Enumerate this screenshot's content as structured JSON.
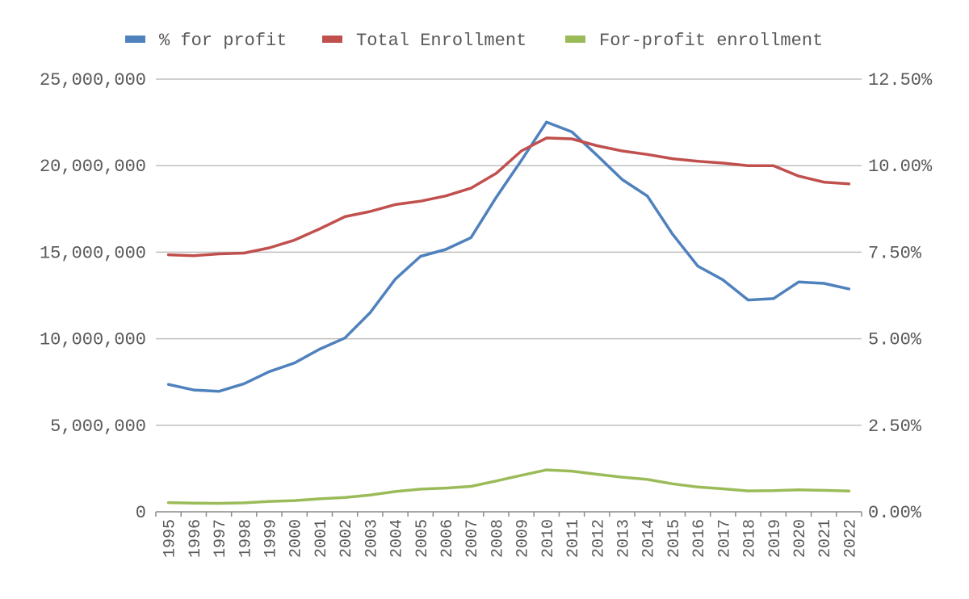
{
  "chart_data": {
    "type": "line",
    "title": "",
    "legend_position": "top",
    "categories": [
      "1995",
      "1996",
      "1997",
      "1998",
      "1999",
      "2000",
      "2001",
      "2002",
      "2003",
      "2004",
      "2005",
      "2006",
      "2007",
      "2008",
      "2009",
      "2010",
      "2011",
      "2012",
      "2013",
      "2014",
      "2015",
      "2016",
      "2017",
      "2018",
      "2019",
      "2020",
      "2021",
      "2022"
    ],
    "y_left": {
      "min": 0,
      "max": 25000000,
      "ticks": [
        0,
        5000000,
        10000000,
        15000000,
        20000000,
        25000000
      ],
      "tick_labels": [
        "0",
        "5,000,000",
        "10,000,000",
        "15,000,000",
        "20,000,000",
        "25,000,000"
      ]
    },
    "y_right": {
      "min": 0,
      "max": 12.5,
      "ticks": [
        0,
        2.5,
        5,
        7.5,
        10,
        12.5
      ],
      "tick_labels": [
        "0.00%",
        "2.50%",
        "5.00%",
        "7.50%",
        "10.00%",
        "12.50%"
      ]
    },
    "grid": true,
    "series": [
      {
        "name": "% for profit",
        "axis": "right",
        "color": "#4f81bd",
        "values": [
          3.68,
          3.52,
          3.48,
          3.7,
          4.05,
          4.3,
          4.7,
          5.02,
          5.75,
          6.72,
          7.38,
          7.58,
          7.92,
          9.08,
          10.15,
          11.26,
          10.98,
          10.3,
          9.6,
          9.12,
          8.02,
          7.1,
          6.7,
          6.12,
          6.16,
          6.64,
          6.6,
          6.44
        ]
      },
      {
        "name": "Total Enrollment",
        "axis": "left",
        "color": "#c0504d",
        "values": [
          14850000,
          14800000,
          14900000,
          14950000,
          15250000,
          15700000,
          16350000,
          17050000,
          17350000,
          17750000,
          17950000,
          18250000,
          18700000,
          19550000,
          20850000,
          21600000,
          21550000,
          21150000,
          20850000,
          20650000,
          20400000,
          20250000,
          20150000,
          20000000,
          20000000,
          19400000,
          19050000,
          18950000
        ]
      },
      {
        "name": "For-profit enrollment",
        "axis": "left",
        "color": "#9bbb59",
        "values": [
          530000,
          500000,
          490000,
          520000,
          600000,
          650000,
          750000,
          830000,
          970000,
          1170000,
          1310000,
          1370000,
          1470000,
          1780000,
          2110000,
          2420000,
          2350000,
          2170000,
          2000000,
          1870000,
          1620000,
          1430000,
          1330000,
          1210000,
          1220000,
          1270000,
          1240000,
          1200000
        ]
      }
    ]
  }
}
